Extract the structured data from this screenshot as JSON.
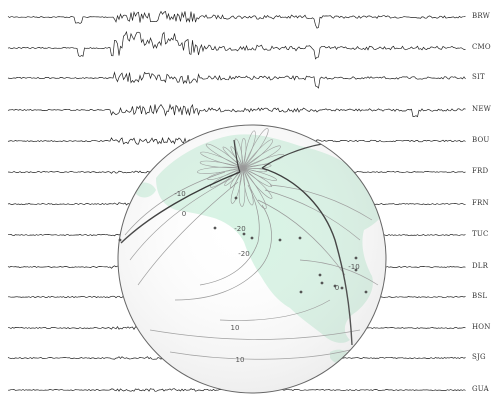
{
  "stations": [
    {
      "code": "BRW"
    },
    {
      "code": "CMO"
    },
    {
      "code": "SIT"
    },
    {
      "code": "NEW"
    },
    {
      "code": "BOU"
    },
    {
      "code": "FRD"
    },
    {
      "code": "FRN"
    },
    {
      "code": "TUC"
    },
    {
      "code": "DLR"
    },
    {
      "code": "BSL"
    },
    {
      "code": "HON"
    },
    {
      "code": "SJG"
    },
    {
      "code": "GUA"
    }
  ],
  "globe": {
    "contour_labels": [
      "-10",
      "0",
      "-20",
      "-20",
      "-10",
      "0",
      "10",
      "10"
    ],
    "colors": {
      "land": "#d7f3e4",
      "contour": "#8f8f8f",
      "zero_contour": "#222222",
      "outline": "#666666",
      "trace": "#222222"
    }
  }
}
